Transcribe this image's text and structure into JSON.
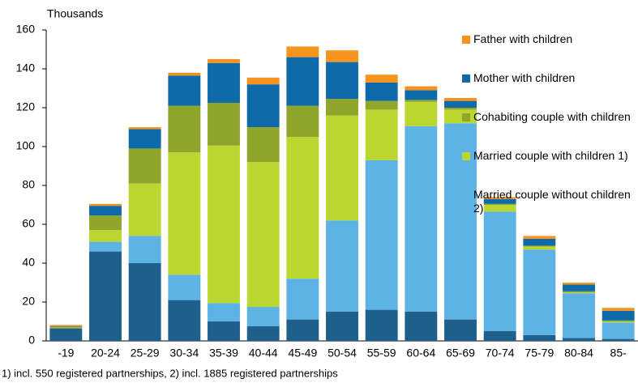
{
  "chart_data": {
    "type": "bar",
    "stacked": true,
    "y_label": "Thousands",
    "note": "1) incl. 550 registered partnerships, 2) incl. 1885 registered partnerships",
    "categories": [
      "-19",
      "20-24",
      "25-29",
      "30-34",
      "35-39",
      "40-44",
      "45-49",
      "50-54",
      "55-59",
      "60-64",
      "65-69",
      "70-74",
      "75-79",
      "80-84",
      "85-"
    ],
    "ylim": [
      0,
      160
    ],
    "yticks": [
      0,
      20,
      40,
      60,
      80,
      100,
      120,
      140,
      160
    ],
    "grid": false,
    "legend": "upper right",
    "series": [
      {
        "color": "#1f5f8b",
        "values": [
          6.5,
          46,
          40,
          21,
          10,
          7.5,
          11,
          15,
          16,
          15,
          11,
          5,
          3,
          1.5,
          1
        ]
      },
      {
        "name": "Married couple without children 2)",
        "color": "#5db3e4",
        "values": [
          0,
          5,
          14,
          13,
          9.5,
          10,
          21,
          47,
          77,
          95.5,
          101,
          61.5,
          44,
          23,
          8.5
        ]
      },
      {
        "name": "Married couple with children 1)",
        "color": "#bcd631",
        "values": [
          0.3,
          6,
          27,
          63,
          81,
          74.5,
          73,
          54,
          26,
          12.5,
          7,
          3.5,
          1.5,
          0.5,
          0.5
        ]
      },
      {
        "name": "Cohabiting couple with children",
        "color": "#8fa52b",
        "values": [
          0.3,
          7.5,
          18,
          24,
          22,
          18,
          16,
          8.5,
          4.5,
          1,
          1,
          0.5,
          0.5,
          0.5,
          0.5
        ]
      },
      {
        "name": "Mother with children",
        "color": "#0e6aa8",
        "values": [
          0.3,
          5,
          10,
          15.5,
          20.5,
          22,
          25,
          19,
          9.5,
          5,
          3.5,
          2.5,
          3.5,
          3.5,
          5
        ]
      },
      {
        "name": "Father with children",
        "color": "#f7941d",
        "values": [
          0.8,
          1,
          1,
          1.5,
          2,
          3.5,
          5.5,
          6,
          4,
          2,
          1.5,
          1,
          1.5,
          1,
          1.5
        ]
      }
    ]
  }
}
